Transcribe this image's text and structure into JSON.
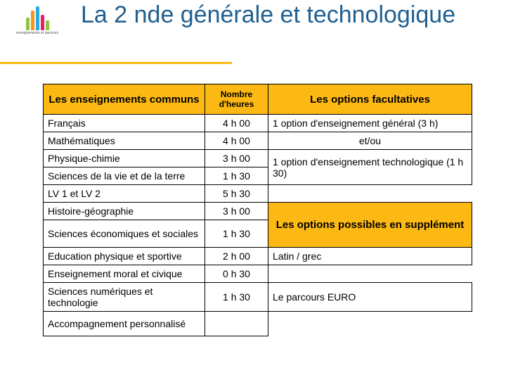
{
  "title": "La 2 nde générale et technologique",
  "logo_caption": "enseignements et parcours",
  "logo_bars": [
    {
      "h": 18,
      "c": "#8cc63f"
    },
    {
      "h": 28,
      "c": "#f7941d"
    },
    {
      "h": 34,
      "c": "#29abe2"
    },
    {
      "h": 22,
      "c": "#e91e63"
    },
    {
      "h": 14,
      "c": "#8cc63f"
    }
  ],
  "left_header": "Les enseignements communs",
  "hours_header": "Nombre d'heures",
  "right_header_1": "Les options facultatives",
  "right_header_2": "Les options possibles en supplément",
  "subjects": [
    {
      "name": "Français",
      "hours": "4 h 00"
    },
    {
      "name": "Mathématiques",
      "hours": "4 h 00"
    },
    {
      "name": "Physique-chimie",
      "hours": "3 h 00"
    },
    {
      "name": "Sciences de la vie et de la terre",
      "hours": "1 h 30"
    },
    {
      "name": "LV 1 et LV 2",
      "hours": "5 h 30"
    },
    {
      "name": "Histoire-géographie",
      "hours": "3 h 00"
    },
    {
      "name": "Sciences économiques et sociales",
      "hours": "1 h 30"
    },
    {
      "name": "Education physique et sportive",
      "hours": "2 h 00"
    },
    {
      "name": "Enseignement moral et civique",
      "hours": "0 h 30"
    },
    {
      "name": "Sciences numériques et technologie",
      "hours": "1 h 30"
    },
    {
      "name": "Accompagnement personnalisé",
      "hours": ""
    }
  ],
  "options": {
    "general": "1 option d'enseignement général (3 h)",
    "and_or": "et/ou",
    "tech": "1 option d'enseignement technologique (1 h 30)",
    "latin": "Latin / grec",
    "euro": "Le parcours EURO"
  },
  "colors": {
    "accent": "#fdb913",
    "title": "#1f6091",
    "border": "#000000",
    "bg": "#ffffff"
  }
}
